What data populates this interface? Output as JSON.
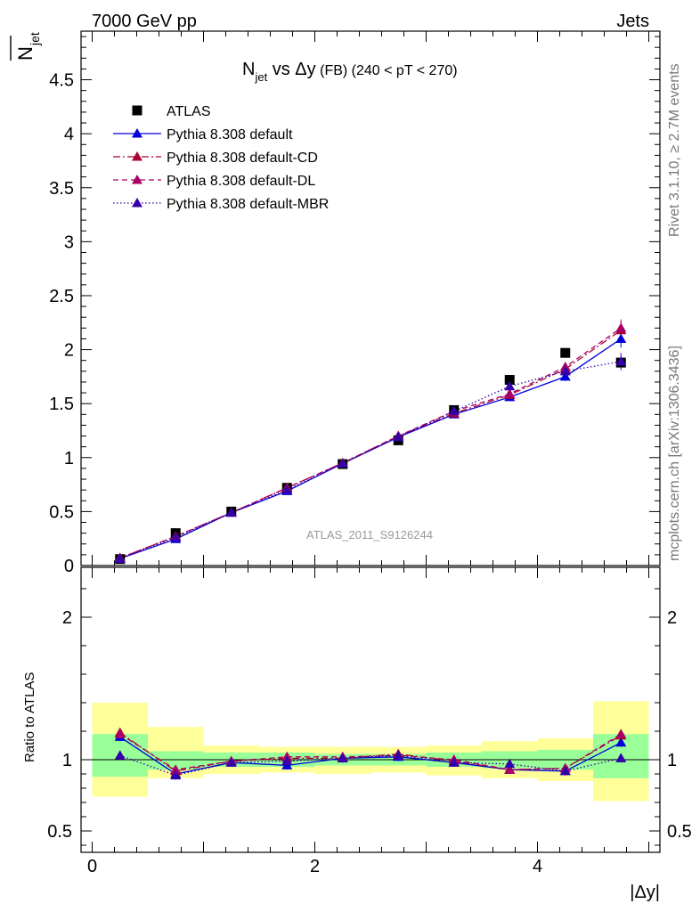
{
  "header": {
    "left": "7000 GeV pp",
    "right": "Jets"
  },
  "side_labels": {
    "rivet": "Rivet 3.1.10, ≥ 2.7M events",
    "mcplots": "mcplots.cern.ch [arXiv:1306.3436]"
  },
  "watermark": "ATLAS_2011_S9126244",
  "colors": {
    "data": "#000000",
    "default": "#0000dd",
    "cd": "#aa0033",
    "dl": "#aa0066",
    "mbr": "#3300aa",
    "band_inner": "#99ff99",
    "band_outer": "#ffff99"
  },
  "chart_data": [
    {
      "type": "scatter",
      "title": "N_jet vs Δy (FB) (240 < pT < 270)",
      "title_parts": {
        "n": "N",
        "jet": "jet",
        "vs": " vs Δy",
        "fb": " (FB) ",
        "range": "(240 < pT < 270)"
      },
      "ylabel": "N̅_jet",
      "ylabel_parts": {
        "n": "N",
        "jet": "jet"
      },
      "xlim": [
        -0.1,
        5.1
      ],
      "ylim": [
        0,
        4.95
      ],
      "yticks": [
        0,
        0.5,
        1,
        1.5,
        2,
        2.5,
        3,
        3.5,
        4,
        4.5
      ],
      "ytick_labels": [
        "0",
        "0.5",
        "1",
        "1.5",
        "2",
        "2.5",
        "3",
        "3.5",
        "4",
        "4.5"
      ],
      "x": [
        0.25,
        0.75,
        1.25,
        1.75,
        2.25,
        2.75,
        3.25,
        3.75,
        4.25,
        4.75
      ],
      "legend": {
        "position": "top-left"
      },
      "series": [
        {
          "name": "ATLAS",
          "key": "data",
          "marker": "square",
          "values": [
            0.06,
            0.3,
            0.5,
            0.72,
            0.94,
            1.16,
            1.44,
            1.72,
            1.97,
            1.88
          ]
        },
        {
          "name": "Pythia 8.308 default",
          "key": "default",
          "marker": "triangle",
          "line": "solid",
          "values": [
            0.065,
            0.245,
            0.49,
            0.69,
            0.945,
            1.19,
            1.4,
            1.56,
            1.75,
            2.1
          ],
          "errors": [
            0.005,
            0.005,
            0.01,
            0.01,
            0.015,
            0.02,
            0.03,
            0.03,
            0.04,
            0.08
          ]
        },
        {
          "name": "Pythia 8.308 default-CD",
          "key": "cd",
          "marker": "triangle",
          "line": "dashdot",
          "values": [
            0.07,
            0.27,
            0.49,
            0.72,
            0.95,
            1.2,
            1.41,
            1.58,
            1.82,
            2.18
          ],
          "errors": [
            0.005,
            0.005,
            0.01,
            0.01,
            0.015,
            0.02,
            0.03,
            0.03,
            0.04,
            0.08
          ]
        },
        {
          "name": "Pythia 8.308 default-DL",
          "key": "dl",
          "marker": "triangle",
          "line": "dashed",
          "values": [
            0.07,
            0.27,
            0.49,
            0.72,
            0.95,
            1.2,
            1.43,
            1.59,
            1.84,
            2.2
          ],
          "errors": [
            0.005,
            0.005,
            0.01,
            0.01,
            0.015,
            0.02,
            0.03,
            0.03,
            0.04,
            0.08
          ]
        },
        {
          "name": "Pythia 8.308 default-MBR",
          "key": "mbr",
          "marker": "triangle",
          "line": "dotted",
          "values": [
            0.062,
            0.26,
            0.49,
            0.7,
            0.945,
            1.19,
            1.43,
            1.66,
            1.8,
            1.89
          ],
          "errors": [
            0.005,
            0.005,
            0.01,
            0.01,
            0.015,
            0.02,
            0.03,
            0.03,
            0.04,
            0.08
          ]
        }
      ]
    },
    {
      "type": "scatter",
      "title": "",
      "ylabel": "Ratio to ATLAS",
      "xlabel": "|Δy|",
      "xlim": [
        -0.1,
        5.1
      ],
      "ylim": [
        0.35,
        2.35
      ],
      "xticks": [
        0,
        2,
        4
      ],
      "xtick_labels": [
        "0",
        "2",
        "4"
      ],
      "yticks": [
        0.5,
        1,
        2
      ],
      "ytick_labels": [
        "0.5",
        "1",
        "2"
      ],
      "x": [
        0.25,
        0.75,
        1.25,
        1.75,
        2.25,
        2.75,
        3.25,
        3.75,
        4.25,
        4.75
      ],
      "bin_edges": [
        0,
        0.5,
        1,
        1.5,
        2,
        2.5,
        3,
        3.5,
        4,
        4.5,
        5
      ],
      "band_inner": [
        [
          0.88,
          1.18
        ],
        [
          0.93,
          1.06
        ],
        [
          0.95,
          1.05
        ],
        [
          0.95,
          1.05
        ],
        [
          0.96,
          1.04
        ],
        [
          0.96,
          1.04
        ],
        [
          0.95,
          1.05
        ],
        [
          0.94,
          1.06
        ],
        [
          0.93,
          1.07
        ],
        [
          0.87,
          1.18
        ]
      ],
      "band_outer": [
        [
          0.74,
          1.4
        ],
        [
          0.87,
          1.23
        ],
        [
          0.9,
          1.1
        ],
        [
          0.91,
          1.09
        ],
        [
          0.9,
          1.09
        ],
        [
          0.91,
          1.09
        ],
        [
          0.89,
          1.1
        ],
        [
          0.87,
          1.13
        ],
        [
          0.85,
          1.15
        ],
        [
          0.71,
          1.41
        ]
      ],
      "series": [
        {
          "name": "Pythia 8.308 default",
          "key": "default",
          "line": "solid",
          "values": [
            1.16,
            0.9,
            0.98,
            0.96,
            1.01,
            1.02,
            0.98,
            0.93,
            0.92,
            1.12
          ]
        },
        {
          "name": "Pythia 8.308 default-CD",
          "key": "cd",
          "line": "dashdot",
          "values": [
            1.19,
            0.92,
            0.99,
            1.01,
            1.01,
            1.04,
            0.99,
            0.93,
            0.94,
            1.17
          ]
        },
        {
          "name": "Pythia 8.308 default-DL",
          "key": "dl",
          "line": "dashed",
          "values": [
            1.18,
            0.93,
            0.99,
            1.02,
            1.02,
            1.03,
            1.0,
            0.93,
            0.94,
            1.18
          ]
        },
        {
          "name": "Pythia 8.308 default-MBR",
          "key": "mbr",
          "line": "dotted",
          "values": [
            1.03,
            0.89,
            0.98,
            0.99,
            1.01,
            1.03,
            0.98,
            0.97,
            0.92,
            1.01
          ]
        }
      ]
    }
  ]
}
